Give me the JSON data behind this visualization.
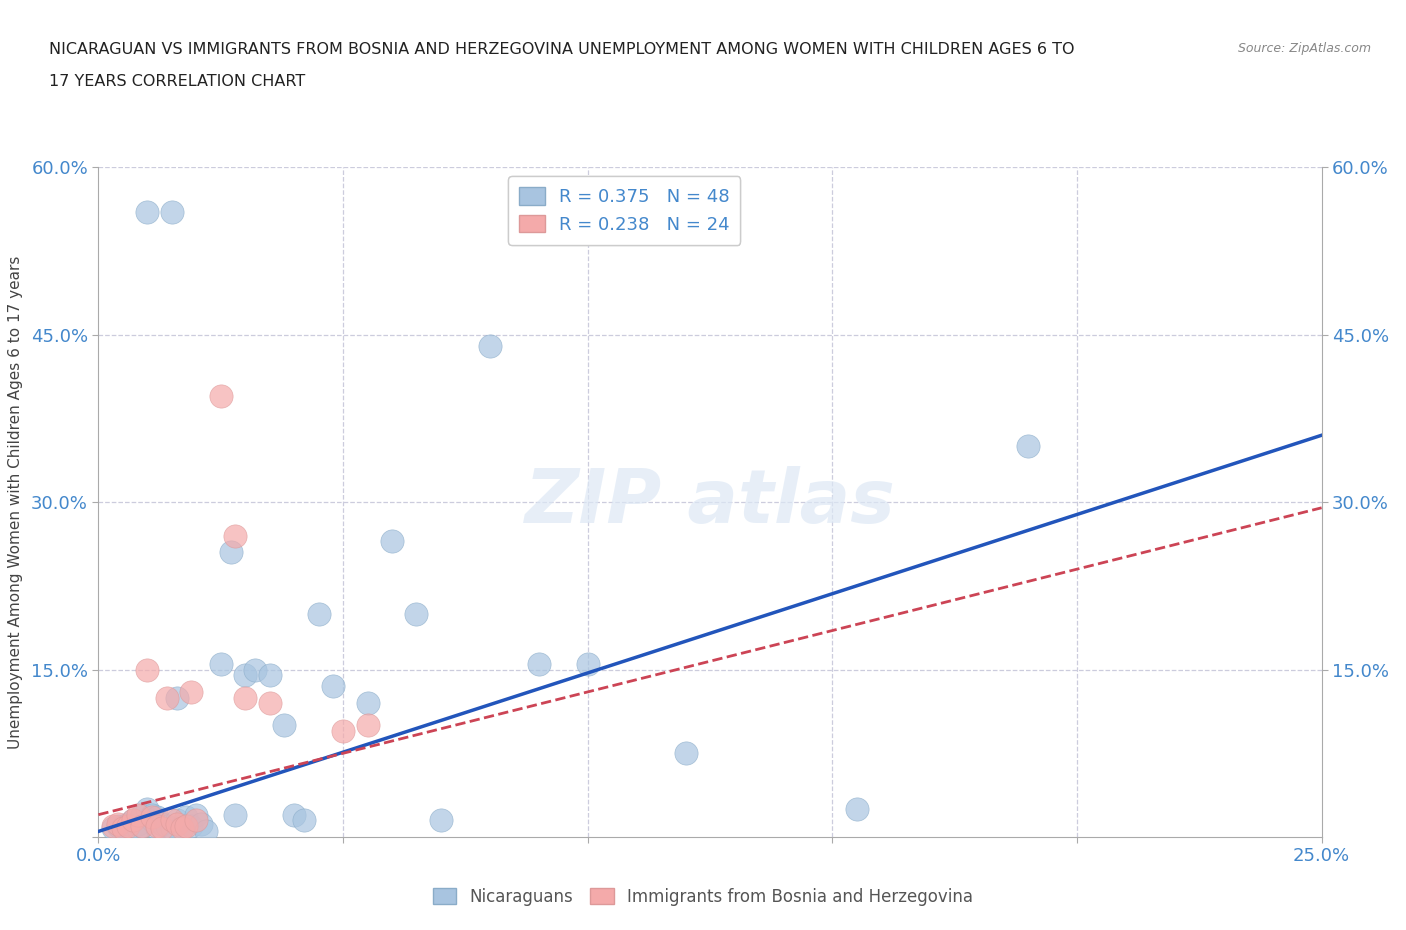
{
  "title_line1": "NICARAGUAN VS IMMIGRANTS FROM BOSNIA AND HERZEGOVINA UNEMPLOYMENT AMONG WOMEN WITH CHILDREN AGES 6 TO",
  "title_line2": "17 YEARS CORRELATION CHART",
  "source": "Source: ZipAtlas.com",
  "ylabel": "Unemployment Among Women with Children Ages 6 to 17 years",
  "xlim": [
    0.0,
    0.25
  ],
  "ylim": [
    0.0,
    0.6
  ],
  "blue_R": 0.375,
  "blue_N": 48,
  "pink_R": 0.238,
  "pink_N": 24,
  "blue_color": "#A8C4E0",
  "pink_color": "#F4AAAA",
  "blue_line_color": "#2255BB",
  "pink_line_color": "#CC4455",
  "grid_color": "#CCCCDD",
  "tick_label_color": "#4488CC",
  "blue_x": [
    0.01,
    0.015,
    0.003,
    0.004,
    0.005,
    0.006,
    0.007,
    0.008,
    0.008,
    0.009,
    0.009,
    0.01,
    0.011,
    0.011,
    0.012,
    0.012,
    0.013,
    0.014,
    0.015,
    0.016,
    0.016,
    0.017,
    0.018,
    0.019,
    0.02,
    0.021,
    0.022,
    0.025,
    0.027,
    0.028,
    0.03,
    0.032,
    0.035,
    0.038,
    0.04,
    0.042,
    0.045,
    0.048,
    0.055,
    0.06,
    0.065,
    0.07,
    0.08,
    0.09,
    0.1,
    0.12,
    0.155,
    0.19
  ],
  "blue_y": [
    0.56,
    0.56,
    0.008,
    0.01,
    0.01,
    0.012,
    0.015,
    0.008,
    0.012,
    0.01,
    0.02,
    0.025,
    0.015,
    0.02,
    0.008,
    0.018,
    0.012,
    0.01,
    0.008,
    0.125,
    0.015,
    0.01,
    0.018,
    0.01,
    0.02,
    0.012,
    0.005,
    0.155,
    0.255,
    0.02,
    0.145,
    0.15,
    0.145,
    0.1,
    0.02,
    0.015,
    0.2,
    0.135,
    0.12,
    0.265,
    0.2,
    0.015,
    0.44,
    0.155,
    0.155,
    0.075,
    0.025,
    0.35
  ],
  "pink_x": [
    0.003,
    0.004,
    0.005,
    0.006,
    0.007,
    0.008,
    0.009,
    0.01,
    0.011,
    0.012,
    0.013,
    0.014,
    0.015,
    0.016,
    0.017,
    0.018,
    0.019,
    0.02,
    0.025,
    0.028,
    0.03,
    0.035,
    0.05,
    0.055
  ],
  "pink_y": [
    0.01,
    0.012,
    0.008,
    0.01,
    0.015,
    0.02,
    0.01,
    0.15,
    0.018,
    0.01,
    0.008,
    0.125,
    0.015,
    0.012,
    0.008,
    0.01,
    0.13,
    0.015,
    0.395,
    0.27,
    0.125,
    0.12,
    0.095,
    0.1
  ],
  "blue_trend_x": [
    0.0,
    0.25
  ],
  "blue_trend_y": [
    0.005,
    0.36
  ],
  "pink_trend_x": [
    0.0,
    0.25
  ],
  "pink_trend_y": [
    0.02,
    0.295
  ]
}
